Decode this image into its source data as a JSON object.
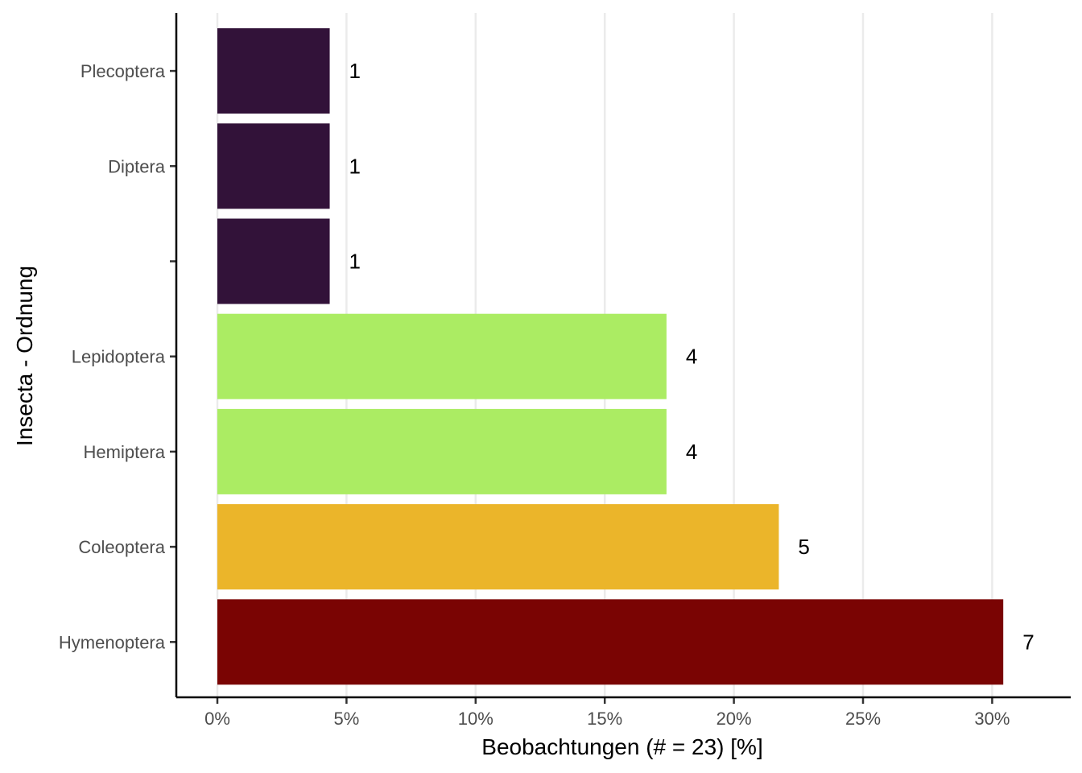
{
  "chart_data": {
    "type": "bar",
    "orientation": "horizontal",
    "xlabel": "Beobachtungen (# = 23) [%]",
    "ylabel": "Insecta - Ordnung",
    "xlim": [
      0,
      32
    ],
    "x_ticks": [
      0,
      5,
      10,
      15,
      20,
      25,
      30
    ],
    "x_tick_labels": [
      "0%",
      "5%",
      "10%",
      "15%",
      "20%",
      "25%",
      "30%"
    ],
    "grid": "vertical major",
    "categories": [
      "Plecoptera",
      "Diptera",
      "",
      "Lepidoptera",
      "Hemiptera",
      "Coleoptera",
      "Hymenoptera"
    ],
    "counts": [
      1,
      1,
      1,
      4,
      4,
      5,
      7
    ],
    "values": [
      4.35,
      4.35,
      4.35,
      17.39,
      17.39,
      21.74,
      30.43
    ],
    "colors": [
      "#321239",
      "#321239",
      "#321239",
      "#abec63",
      "#abec63",
      "#ebb52a",
      "#7a0403"
    ]
  }
}
